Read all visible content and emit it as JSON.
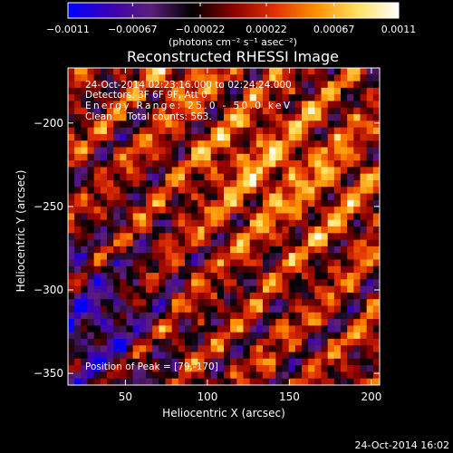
{
  "chart_data": {
    "type": "heatmap",
    "title": "Reconstructed RHESSI Image",
    "xlabel": "Heliocentric X (arcsec)",
    "ylabel": "Heliocentric Y (arcsec)",
    "xlim": [
      15,
      205
    ],
    "ylim": [
      -357,
      -167
    ],
    "xticks": [
      50,
      100,
      150,
      200
    ],
    "yticks": [
      -200,
      -250,
      -300,
      -350
    ],
    "colorbar": {
      "min": -0.0011,
      "max": 0.0011,
      "tick_values": [
        -0.0011,
        -0.00067,
        -0.00022,
        0.00022,
        0.00067,
        0.0011
      ],
      "tick_labels": [
        "-0.0011",
        "-0.00067",
        "-0.00022",
        "0.00022",
        "0.00067",
        "0.0011"
      ],
      "unit_label": "(photons cm⁻² s⁻¹ asec⁻²)",
      "colors": [
        "#0000ff",
        "#3a00b4",
        "#5c1e78",
        "#000000",
        "#8c0000",
        "#e03000",
        "#ff9000",
        "#ffe060",
        "#ffffff"
      ]
    },
    "annotations": [
      "24-Oct-2014 02:23:16.000 to 02:24:24.000",
      "Detectors: 3F 6F 9F, Att 0",
      "Energy Range: 25.0 - 50.0 keV",
      "Clean     Total counts: 563.",
      "Position of Peak = [79,-170]"
    ],
    "peak": {
      "x": 79,
      "y": -170
    }
  },
  "footer": {
    "timestamp": "24-Oct-2014 16:02"
  }
}
